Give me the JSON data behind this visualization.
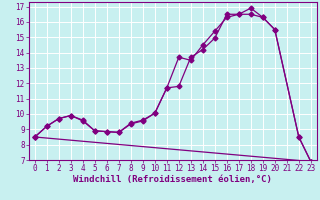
{
  "xlabel": "Windchill (Refroidissement éolien,°C)",
  "xlim": [
    -0.5,
    23.5
  ],
  "ylim": [
    7,
    17.3
  ],
  "xticks": [
    0,
    1,
    2,
    3,
    4,
    5,
    6,
    7,
    8,
    9,
    10,
    11,
    12,
    13,
    14,
    15,
    16,
    17,
    18,
    19,
    20,
    21,
    22,
    23
  ],
  "yticks": [
    7,
    8,
    9,
    10,
    11,
    12,
    13,
    14,
    15,
    16,
    17
  ],
  "bg_color": "#c8f0f0",
  "line_color": "#800080",
  "grid_color": "#ffffff",
  "line1_x": [
    0,
    1,
    2,
    3,
    4,
    5,
    6,
    7,
    8,
    9,
    10,
    11,
    12,
    13,
    14,
    15,
    16,
    17,
    18,
    19,
    20,
    22,
    23
  ],
  "line1_y": [
    8.5,
    9.2,
    9.7,
    9.9,
    9.6,
    8.9,
    8.85,
    8.8,
    9.4,
    9.6,
    10.05,
    11.7,
    13.7,
    13.5,
    14.5,
    15.4,
    16.3,
    16.5,
    16.9,
    16.3,
    15.5,
    8.5,
    6.9
  ],
  "line2_x": [
    0,
    1,
    2,
    3,
    4,
    5,
    6,
    7,
    8,
    9,
    10,
    11,
    12,
    13,
    14,
    15,
    16,
    17,
    18,
    19,
    20,
    22,
    23
  ],
  "line2_y": [
    8.5,
    9.2,
    9.7,
    9.9,
    9.55,
    8.9,
    8.85,
    8.8,
    9.35,
    9.55,
    10.05,
    11.7,
    11.8,
    13.7,
    14.2,
    14.95,
    16.5,
    16.5,
    16.5,
    16.3,
    15.5,
    8.5,
    6.9
  ],
  "line3_x": [
    0,
    23
  ],
  "line3_y": [
    8.5,
    6.9
  ],
  "marker": "D",
  "markersize": 2.5,
  "linewidth": 0.9,
  "font_family": "monospace",
  "tick_fontsize": 5.5,
  "xlabel_fontsize": 6.5,
  "tick_color": "#800080",
  "axis_color": "#800080"
}
